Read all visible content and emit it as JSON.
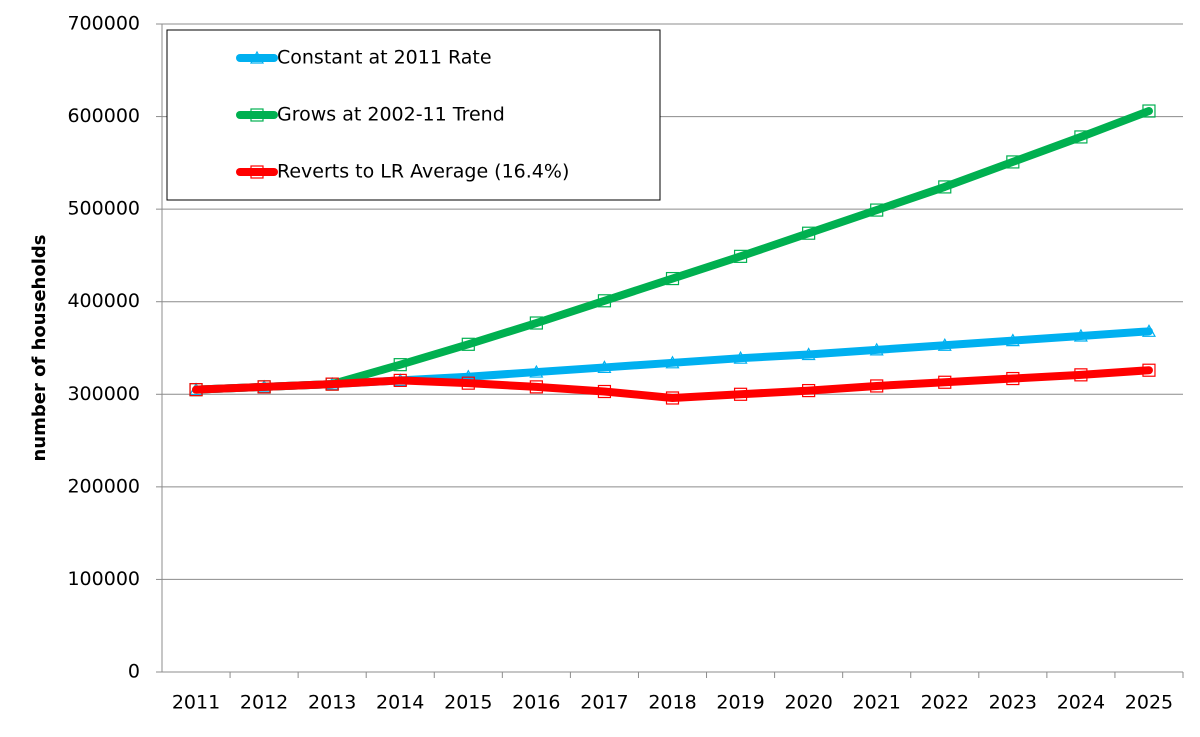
{
  "chart_data": {
    "type": "line",
    "y_label": "number of households",
    "categories": [
      "2011",
      "2012",
      "2013",
      "2014",
      "2015",
      "2016",
      "2017",
      "2018",
      "2019",
      "2020",
      "2021",
      "2022",
      "2023",
      "2024",
      "2025"
    ],
    "series": [
      {
        "name": "Constant at 2011 Rate",
        "color": "#00b0f0",
        "marker": "triangle",
        "values": [
          305000,
          308000,
          311000,
          315000,
          319000,
          324000,
          329000,
          334000,
          339000,
          343000,
          348000,
          353000,
          358000,
          363000,
          368000
        ]
      },
      {
        "name": "Grows at 2002-11 Trend",
        "color": "#00b050",
        "marker": "square",
        "values": [
          305000,
          308000,
          311000,
          332000,
          354000,
          377000,
          401000,
          425000,
          449000,
          474000,
          499000,
          524000,
          551000,
          578000,
          606000
        ]
      },
      {
        "name": "Reverts to LR Average (16.4%)",
        "color": "#ff0000",
        "marker": "square",
        "values": [
          305000,
          308000,
          311000,
          315000,
          312000,
          308000,
          303000,
          296000,
          300000,
          304000,
          309000,
          313000,
          317000,
          321000,
          326000
        ]
      }
    ],
    "ylim": [
      0,
      700000
    ],
    "yticks": [
      0,
      100000,
      200000,
      300000,
      400000,
      500000,
      600000,
      700000
    ],
    "grid": true
  }
}
